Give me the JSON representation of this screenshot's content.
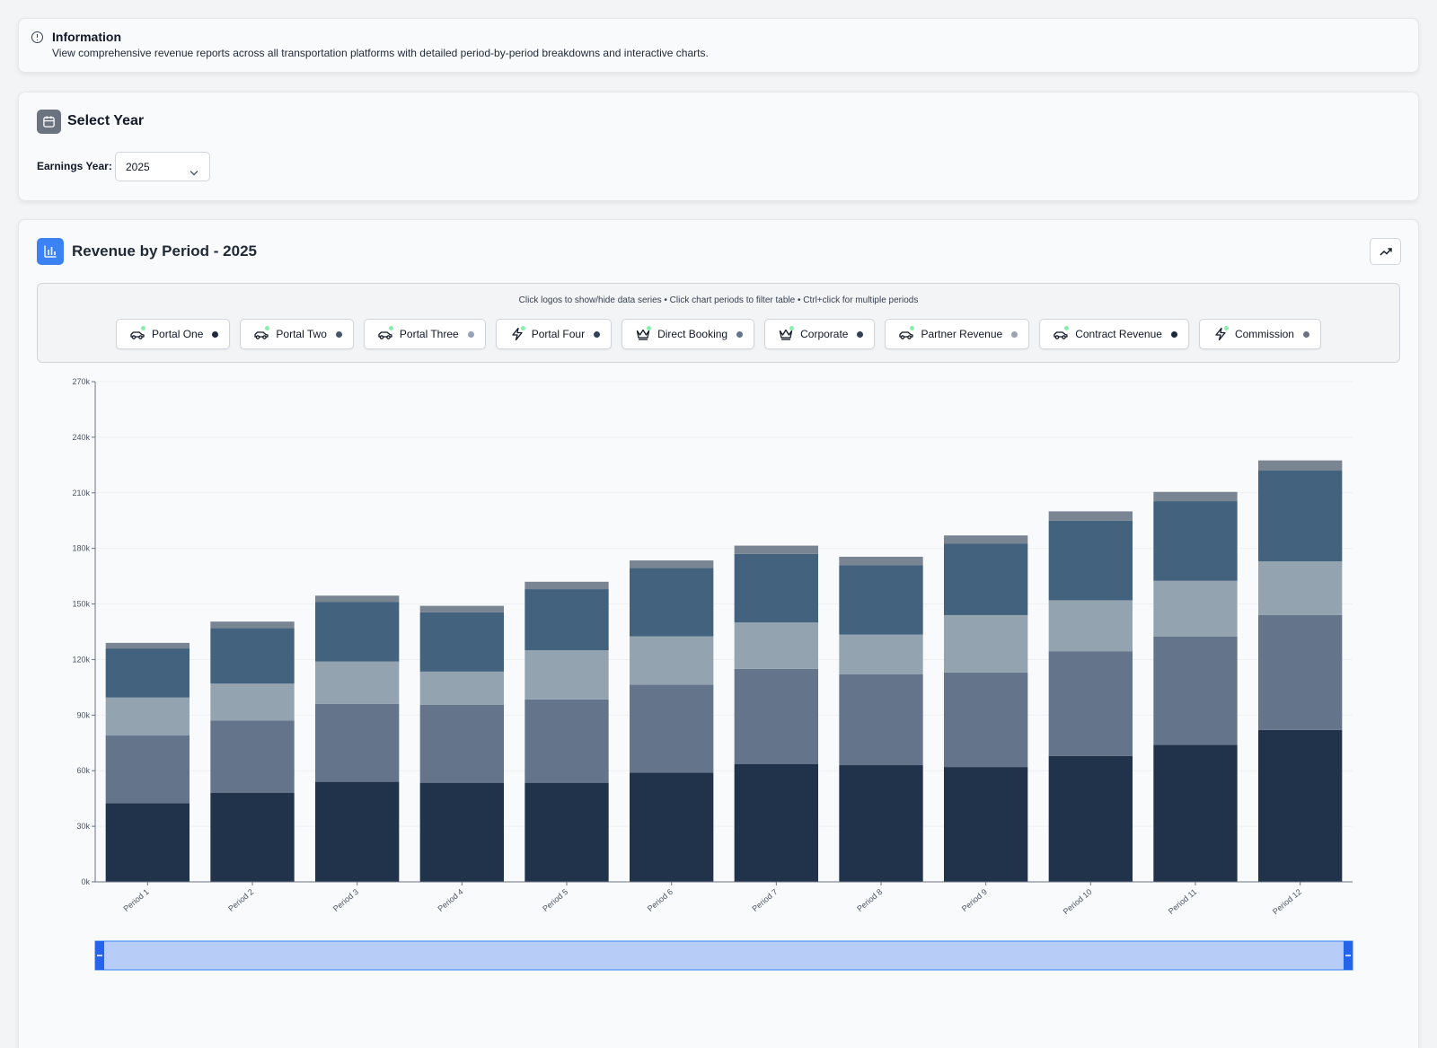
{
  "info": {
    "title": "Information",
    "description": "View comprehensive revenue reports across all transportation platforms with detailed period-by-period breakdowns and interactive charts."
  },
  "year_selector": {
    "title": "Select Year",
    "label": "Earnings Year:",
    "selected": "2025"
  },
  "chart_panel": {
    "title": "Revenue by Period - 2025",
    "hint": "Click logos to show/hide data series • Click chart periods to filter table • Ctrl+click for multiple periods",
    "legend": [
      {
        "label": "Portal One",
        "icon": "car-icon",
        "color": "#1e293b"
      },
      {
        "label": "Portal Two",
        "icon": "car-icon",
        "color": "#475569"
      },
      {
        "label": "Portal Three",
        "icon": "car-icon",
        "color": "#94a3b8"
      },
      {
        "label": "Portal Four",
        "icon": "bolt-icon",
        "color": "#334155"
      },
      {
        "label": "Direct Booking",
        "icon": "crown-icon",
        "color": "#64748b"
      },
      {
        "label": "Corporate",
        "icon": "crown-icon",
        "color": "#334155"
      },
      {
        "label": "Partner Revenue",
        "icon": "car-icon",
        "color": "#9ca3af"
      },
      {
        "label": "Contract Revenue",
        "icon": "car-icon",
        "color": "#1e293b"
      },
      {
        "label": "Commission",
        "icon": "bolt-icon",
        "color": "#6b7280"
      }
    ]
  },
  "chart_data": {
    "type": "bar",
    "stacked": true,
    "categories": [
      "Period 1",
      "Period 2",
      "Period 3",
      "Period 4",
      "Period 5",
      "Period 6",
      "Period 7",
      "Period 8",
      "Period 9",
      "Period 10",
      "Period 11",
      "Period 12"
    ],
    "y_ticks": [
      "0k",
      "30k",
      "60k",
      "90k",
      "120k",
      "150k",
      "180k",
      "210k",
      "240k",
      "270k"
    ],
    "ylim": [
      0,
      270000
    ],
    "colors": [
      "#21324b",
      "#64748b",
      "#94a3b0",
      "#42627d",
      "#7a8593"
    ],
    "series": [
      {
        "values": [
          42500,
          48000,
          54000,
          53500,
          53500,
          59000,
          63500,
          63000,
          62000,
          68000,
          74000,
          82000
        ]
      },
      {
        "values": [
          36500,
          39000,
          42000,
          42000,
          45000,
          47500,
          51500,
          49000,
          51000,
          56500,
          58500,
          62000
        ]
      },
      {
        "values": [
          20500,
          20000,
          23000,
          18000,
          26500,
          26000,
          25000,
          21500,
          31000,
          27500,
          30000,
          29000
        ]
      },
      {
        "values": [
          26500,
          30000,
          32000,
          32000,
          33000,
          37000,
          37000,
          37500,
          38500,
          43000,
          43000,
          49000
        ]
      },
      {
        "values": [
          3000,
          3500,
          3500,
          3500,
          4000,
          4000,
          4500,
          4500,
          4500,
          5000,
          5000,
          5500
        ]
      }
    ],
    "grid": true,
    "range_slider": {
      "start": 0,
      "end": 1
    }
  }
}
